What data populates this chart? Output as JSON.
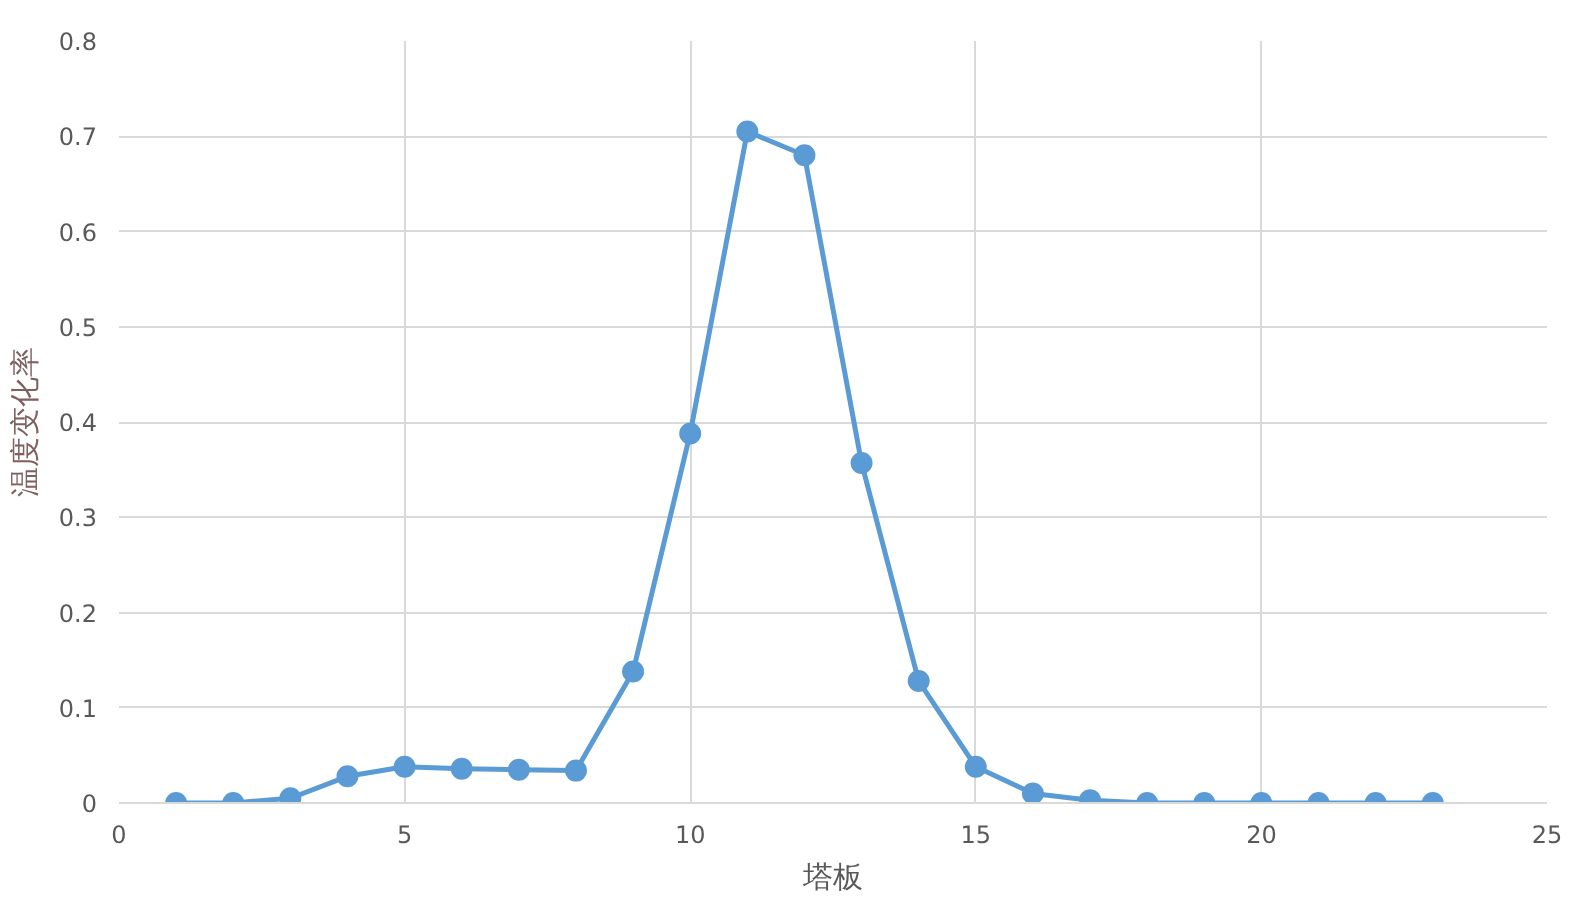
{
  "chart_data": {
    "type": "line",
    "xlabel": "塔板",
    "ylabel": "温度变化率",
    "x": [
      1,
      2,
      3,
      4,
      5,
      6,
      7,
      8,
      9,
      10,
      11,
      12,
      13,
      14,
      15,
      16,
      17,
      18,
      19,
      20,
      21,
      22,
      23
    ],
    "series": [
      {
        "color": "#5b9bd5",
        "values": [
          0,
          0,
          0.005,
          0.028,
          0.038,
          0.036,
          0.035,
          0.034,
          0.138,
          0.388,
          0.705,
          0.68,
          0.357,
          0.128,
          0.038,
          0.01,
          0.003,
          0,
          0,
          0,
          0,
          0,
          0
        ]
      }
    ],
    "xlim": [
      0,
      25
    ],
    "xticks": [
      0,
      5,
      10,
      15,
      20,
      25
    ],
    "ylim": [
      0,
      0.8
    ],
    "yticks": [
      0,
      0.1,
      0.2,
      0.3,
      0.4,
      0.5,
      0.6,
      0.7,
      0.8
    ],
    "grid": true,
    "marker": "circle",
    "line_style": "solid"
  }
}
